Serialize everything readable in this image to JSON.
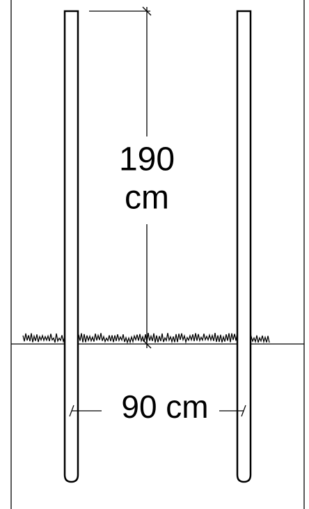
{
  "height_dimension": {
    "value_text": "190",
    "unit_text": "cm"
  },
  "width_dimension": {
    "label": "90 cm"
  }
}
